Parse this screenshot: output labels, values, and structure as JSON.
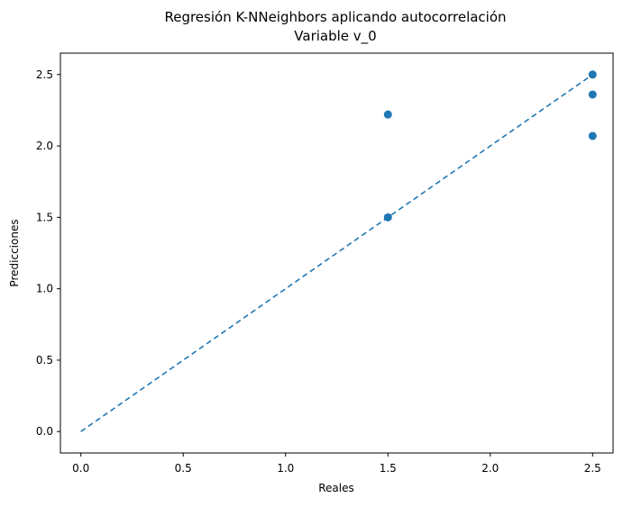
{
  "chart_data": {
    "type": "scatter",
    "title": "Regresión K-NNeighbors aplicando autocorrelación",
    "subtitle": "Variable v_0",
    "xlabel": "Reales",
    "ylabel": "Predicciones",
    "xlim": [
      -0.1,
      2.6
    ],
    "ylim": [
      -0.15,
      2.65
    ],
    "xticks": [
      0.0,
      0.5,
      1.0,
      1.5,
      2.0,
      2.5
    ],
    "xtick_labels": [
      "0.0",
      "0.5",
      "1.0",
      "1.5",
      "2.0",
      "2.5"
    ],
    "yticks": [
      0.0,
      0.5,
      1.0,
      1.5,
      2.0,
      2.5
    ],
    "ytick_labels": [
      "0.0",
      "0.5",
      "1.0",
      "1.5",
      "2.0",
      "2.5"
    ],
    "grid": false,
    "points": [
      {
        "x": 1.5,
        "y": 2.22
      },
      {
        "x": 1.5,
        "y": 1.5
      },
      {
        "x": 2.5,
        "y": 2.5
      },
      {
        "x": 2.5,
        "y": 2.36
      },
      {
        "x": 2.5,
        "y": 2.07
      }
    ],
    "reference_line": {
      "x": [
        0.0,
        2.5
      ],
      "y": [
        0.0,
        2.5
      ],
      "style": "dashed"
    },
    "colors": {
      "series": "#1f77b4",
      "axes": "#000000",
      "background": "#ffffff"
    }
  }
}
